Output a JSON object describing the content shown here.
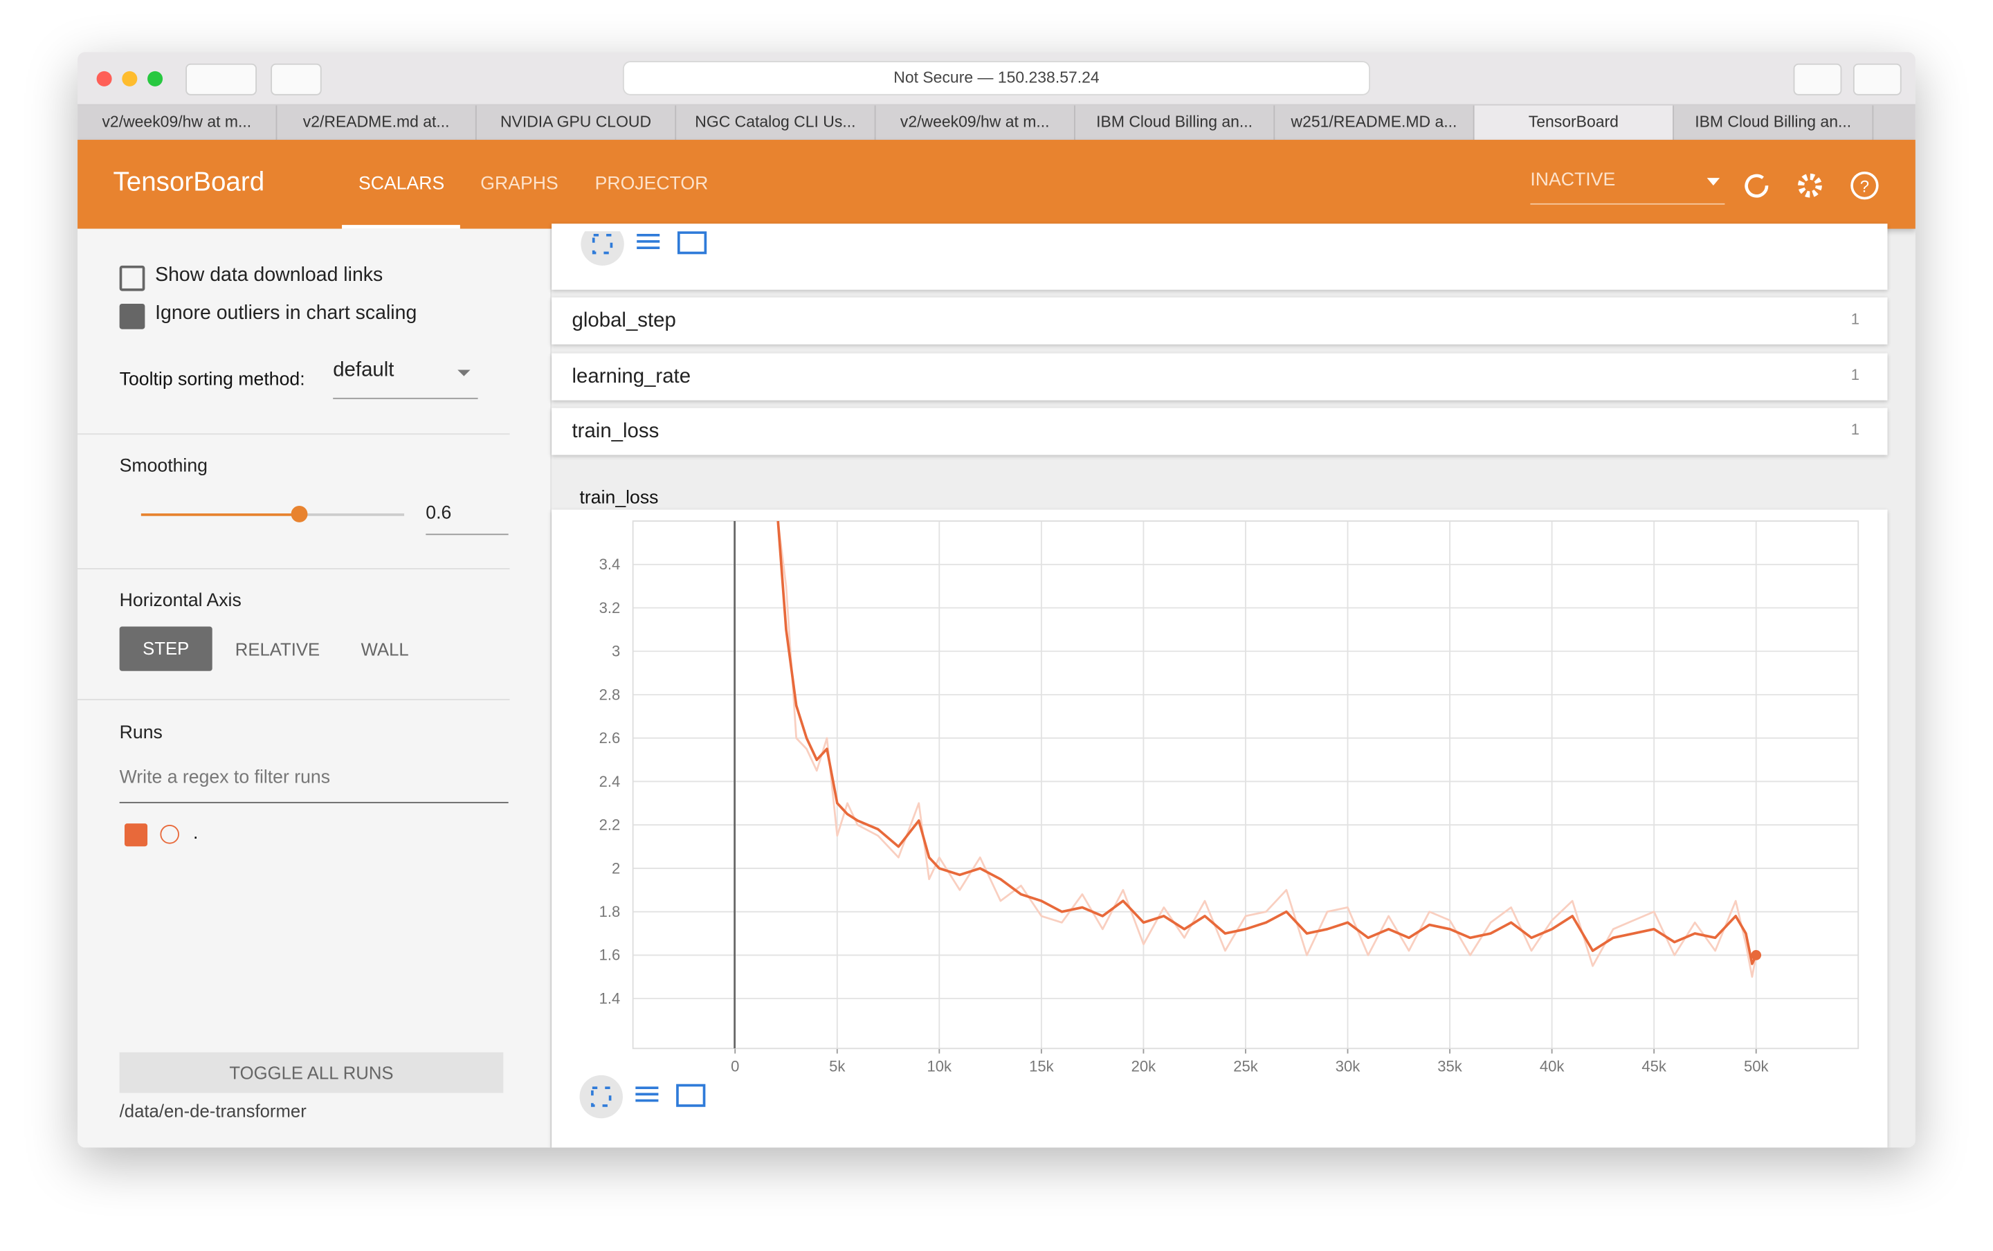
{
  "browser": {
    "address": "Not Secure — 150.238.57.24",
    "tabs": [
      "v2/week09/hw at m...",
      "v2/README.md at...",
      "NVIDIA GPU CLOUD",
      "NGC Catalog CLI Us...",
      "v2/week09/hw at m...",
      "IBM Cloud Billing an...",
      "w251/README.MD a...",
      "TensorBoard",
      "IBM Cloud Billing an..."
    ]
  },
  "header": {
    "title": "TensorBoard",
    "nav": [
      "SCALARS",
      "GRAPHS",
      "PROJECTOR"
    ],
    "status": "INACTIVE"
  },
  "sidebar": {
    "show_download": "Show data download links",
    "ignore_outliers": "Ignore outliers in chart scaling",
    "tooltip_label": "Tooltip sorting method:",
    "tooltip_value": "default",
    "smoothing_label": "Smoothing",
    "smoothing_value": 0.6,
    "horizontal_axis_label": "Horizontal Axis",
    "axis_options": [
      "STEP",
      "RELATIVE",
      "WALL"
    ],
    "runs_label": "Runs",
    "runs_filter_placeholder": "Write a regex to filter runs",
    "run_name": ".",
    "toggle_button": "TOGGLE ALL RUNS",
    "logdir": "/data/en-de-transformer"
  },
  "cards": [
    {
      "name": "global_step",
      "count": 1
    },
    {
      "name": "learning_rate",
      "count": 1
    },
    {
      "name": "train_loss",
      "count": 1
    }
  ],
  "chart_data": {
    "type": "line",
    "title": "train_loss",
    "x": [
      2100,
      2500,
      3000,
      3500,
      4000,
      4500,
      5000,
      5500,
      6000,
      7000,
      8000,
      9000,
      9500,
      10000,
      11000,
      12000,
      13000,
      14000,
      15000,
      16000,
      17000,
      18000,
      19000,
      20000,
      21000,
      22000,
      23000,
      24000,
      25000,
      26000,
      27000,
      28000,
      29000,
      30000,
      31000,
      32000,
      33000,
      34000,
      35000,
      36000,
      37000,
      38000,
      39000,
      40000,
      41000,
      42000,
      43000,
      44000,
      45000,
      46000,
      47000,
      48000,
      49000,
      49500,
      49800,
      50000
    ],
    "series": [
      {
        "color": "#e8693a",
        "values": [
          3.6,
          3.1,
          2.75,
          2.6,
          2.5,
          2.55,
          2.3,
          2.25,
          2.22,
          2.18,
          2.1,
          2.22,
          2.05,
          2.0,
          1.97,
          2.0,
          1.95,
          1.88,
          1.85,
          1.8,
          1.82,
          1.78,
          1.85,
          1.75,
          1.78,
          1.72,
          1.78,
          1.7,
          1.72,
          1.75,
          1.8,
          1.7,
          1.72,
          1.75,
          1.68,
          1.72,
          1.68,
          1.74,
          1.72,
          1.68,
          1.7,
          1.75,
          1.68,
          1.72,
          1.78,
          1.62,
          1.68,
          1.7,
          1.72,
          1.66,
          1.7,
          1.68,
          1.78,
          1.7,
          1.56,
          1.6
        ]
      },
      {
        "color": "#f9cfc0",
        "values": [
          3.6,
          3.3,
          2.6,
          2.55,
          2.45,
          2.6,
          2.15,
          2.3,
          2.2,
          2.15,
          2.05,
          2.3,
          1.95,
          2.05,
          1.9,
          2.05,
          1.85,
          1.92,
          1.78,
          1.75,
          1.88,
          1.72,
          1.9,
          1.65,
          1.82,
          1.68,
          1.85,
          1.62,
          1.78,
          1.8,
          1.9,
          1.6,
          1.8,
          1.82,
          1.6,
          1.78,
          1.62,
          1.8,
          1.76,
          1.6,
          1.75,
          1.82,
          1.62,
          1.76,
          1.85,
          1.55,
          1.72,
          1.76,
          1.8,
          1.6,
          1.75,
          1.62,
          1.85,
          1.65,
          1.5,
          1.6
        ]
      }
    ],
    "xlim": [
      -5000,
      55000
    ],
    "ylim": [
      1.17,
      3.6
    ],
    "xticks": [
      0,
      {
        "value": 5000,
        "label": "5k"
      },
      {
        "value": 10000,
        "label": "10k"
      },
      {
        "value": 15000,
        "label": "15k"
      },
      {
        "value": 20000,
        "label": "20k"
      },
      {
        "value": 25000,
        "label": "25k"
      },
      {
        "value": 30000,
        "label": "30k"
      },
      {
        "value": 35000,
        "label": "35k"
      },
      {
        "value": 40000,
        "label": "40k"
      },
      {
        "value": 45000,
        "label": "45k"
      },
      {
        "value": 50000,
        "label": "50k"
      }
    ],
    "yticks": [
      1.4,
      1.6,
      1.8,
      2,
      2.2,
      2.4,
      2.6,
      2.8,
      3,
      3.2,
      3.4
    ],
    "grid": true
  }
}
